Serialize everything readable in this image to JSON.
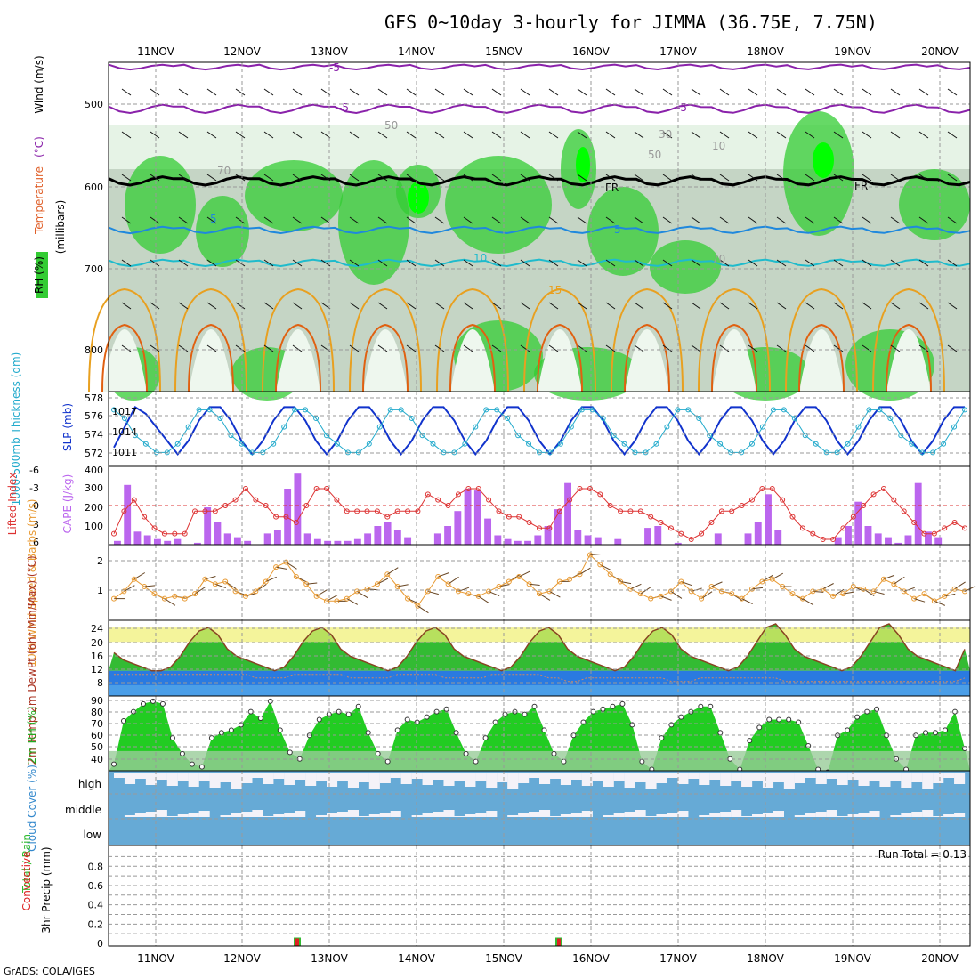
{
  "title": "GFS 0~10day 3-hourly for JIMMA (36.75E, 7.75N)",
  "footer": "GrADS: COLA/IGES",
  "dates": [
    "11NOV",
    "12NOV",
    "13NOV",
    "14NOV",
    "15NOV",
    "16NOV",
    "17NOV",
    "18NOV",
    "19NOV",
    "20NOV"
  ],
  "colors": {
    "rh_green": "#33cc33",
    "thick_line": "#22aacc",
    "slp_line": "#1133cc",
    "cape_bar": "#bb66ee",
    "li_line": "#dd3333",
    "wind_line": "#e89a33",
    "cloud_bg": "#66aad6",
    "precip_rain": "#33bb33",
    "precip_conv": "#dd2222"
  },
  "chart_data": [
    {
      "type": "area",
      "panel": "upper-air",
      "ylabel_parts": [
        "RH (%)",
        "Temperature",
        "(°C)",
        "Wind (m/s)",
        "(millibars)"
      ],
      "y_ticks": [
        "500",
        "600",
        "700",
        "800"
      ],
      "contour_labels": [
        "-5",
        "-5",
        "-5",
        "5",
        "5",
        "10",
        "15",
        "FR",
        "FR",
        "50",
        "30",
        "10",
        "50",
        "70",
        "70"
      ]
    },
    {
      "type": "line",
      "panel": "thickness-slp",
      "ylabel_left": "1000-500mb Thickness (dm)",
      "ylabel_right": "SLP (mb)",
      "left_ticks": [
        "578",
        "576",
        "574",
        "572"
      ],
      "right_ticks": [
        "1017",
        "1014",
        "1011"
      ],
      "series": [
        {
          "name": "SLP",
          "values": [
            1011,
            1014,
            1017,
            1016,
            1014,
            1012,
            1010,
            1012,
            1015,
            1017,
            1017,
            1015,
            1012,
            1010,
            1012,
            1015,
            1017,
            1017,
            1015,
            1012,
            1010,
            1012,
            1015,
            1017,
            1017,
            1015,
            1012,
            1010,
            1012,
            1015,
            1017,
            1017,
            1015,
            1012,
            1010,
            1012,
            1015,
            1017,
            1017,
            1015,
            1012,
            1010,
            1012,
            1015,
            1017,
            1017,
            1015,
            1012,
            1010,
            1012,
            1015,
            1017,
            1017,
            1015,
            1012,
            1010,
            1012,
            1015,
            1017,
            1017,
            1015,
            1012,
            1010,
            1012,
            1015,
            1017,
            1017,
            1015,
            1012,
            1010,
            1012,
            1015,
            1017,
            1017,
            1015,
            1012,
            1010,
            1012,
            1015,
            1017,
            1017
          ]
        },
        {
          "name": "Thickness",
          "values": [
            577,
            576,
            574,
            573,
            572,
            572,
            573,
            575,
            577,
            577,
            576,
            574,
            573,
            572,
            572,
            573,
            575,
            577,
            577,
            576,
            574,
            573,
            572,
            572,
            573,
            575,
            577,
            577,
            576,
            574,
            573,
            572,
            572,
            573,
            575,
            577,
            577,
            576,
            574,
            573,
            572,
            572,
            573,
            575,
            577,
            577,
            576,
            574,
            573,
            572,
            572,
            573,
            575,
            577,
            577,
            576,
            574,
            573,
            572,
            572,
            573,
            575,
            577,
            577,
            576,
            574,
            573,
            572,
            572,
            573,
            575,
            577,
            577,
            576,
            574,
            573,
            572,
            572,
            573,
            575,
            577
          ]
        }
      ]
    },
    {
      "type": "bar",
      "panel": "lifted-index-cape",
      "ylabel_left": "Lifted Index",
      "ylabel_right": "CAPE (J/kg)",
      "li_ticks": [
        "-6",
        "-3",
        "0",
        "3",
        "6"
      ],
      "cape_ticks": [
        "400",
        "300",
        "200",
        "100"
      ],
      "cape": [
        20,
        320,
        70,
        50,
        30,
        20,
        30,
        0,
        10,
        200,
        120,
        60,
        40,
        20,
        0,
        60,
        80,
        300,
        380,
        60,
        30,
        20,
        20,
        20,
        30,
        60,
        100,
        120,
        80,
        40,
        0,
        0,
        60,
        100,
        180,
        300,
        290,
        140,
        50,
        30,
        20,
        20,
        50,
        100,
        190,
        330,
        80,
        50,
        40,
        0,
        30,
        0,
        0,
        90,
        100,
        0,
        10,
        0,
        0,
        0,
        60,
        0,
        0,
        60,
        120,
        270,
        80,
        0,
        0,
        0,
        0,
        0,
        40,
        100,
        230,
        100,
        60,
        40,
        10,
        50,
        330,
        70,
        40,
        0,
        0
      ],
      "li": [
        5,
        1,
        -1,
        2,
        4,
        5,
        5,
        5,
        1,
        1,
        1,
        0,
        -1,
        -3,
        -1,
        0,
        2,
        2,
        3,
        0,
        -3,
        -3,
        -1,
        1,
        1,
        1,
        1,
        2,
        1,
        1,
        1,
        -2,
        -1,
        0,
        -2,
        -3,
        -3,
        -1,
        1,
        2,
        2,
        3,
        4,
        4,
        1,
        -1,
        -3,
        -3,
        -2,
        0,
        1,
        1,
        1,
        2,
        3,
        4,
        5,
        6,
        5,
        3,
        1,
        1,
        0,
        -1,
        -3,
        -3,
        -1,
        2,
        4,
        5,
        6,
        6,
        4,
        2,
        0,
        -2,
        -3,
        -1,
        1,
        3,
        5,
        5,
        4,
        3,
        4
      ]
    },
    {
      "type": "line",
      "panel": "wind10m",
      "ylabel": "10m Wind Speed & Barbs (m/s)",
      "y_ticks": [
        "2",
        "1"
      ],
      "series": [
        {
          "name": "Speed",
          "values": [
            0.6,
            0.9,
            1.4,
            1.1,
            0.8,
            0.6,
            0.7,
            0.6,
            0.8,
            1.4,
            1.2,
            1.3,
            0.9,
            0.7,
            0.9,
            1.3,
            1.9,
            2.1,
            1.5,
            1.2,
            0.7,
            0.5,
            0.5,
            0.6,
            0.9,
            1.0,
            1.2,
            1.6,
            1.1,
            0.6,
            0.3,
            0.9,
            1.5,
            1.2,
            0.9,
            0.8,
            0.7,
            0.9,
            1.1,
            1.3,
            1.5,
            1.2,
            0.8,
            0.9,
            1.3,
            1.4,
            1.6,
            2.4,
            2.0,
            1.6,
            1.3,
            1.0,
            0.8,
            0.6,
            0.7,
            0.9,
            1.3,
            0.9,
            0.6,
            1.1,
            0.9,
            0.8,
            0.6,
            1.0,
            1.3,
            1.4,
            1.1,
            0.8,
            0.6,
            0.9,
            1.0,
            0.7,
            0.8,
            1.1,
            1.0,
            0.9,
            1.4,
            1.2,
            0.9,
            0.6,
            0.8,
            0.5,
            0.7,
            1.0,
            0.9
          ]
        }
      ]
    },
    {
      "type": "area",
      "panel": "temp2m",
      "ylabel": "2m Temp 2m DewPt (6hr Min/Max) (°C)",
      "y_ticks": [
        "24",
        "20",
        "16",
        "12",
        "8"
      ],
      "series": [
        {
          "name": "Temp",
          "values": [
            17,
            15,
            14,
            13,
            12,
            12,
            13,
            16,
            20,
            23,
            24,
            22,
            18,
            16,
            15,
            14,
            13,
            12,
            13,
            16,
            20,
            23,
            24,
            22,
            18,
            16,
            15,
            14,
            13,
            12,
            13,
            16,
            20,
            23,
            24,
            22,
            18,
            16,
            15,
            14,
            13,
            12,
            13,
            16,
            20,
            23,
            24,
            22,
            18,
            16,
            15,
            14,
            13,
            12,
            13,
            16,
            20,
            23,
            24,
            22,
            18,
            16,
            15,
            14,
            13,
            12,
            13,
            16,
            20,
            24,
            25,
            22,
            18,
            16,
            15,
            14,
            13,
            12,
            13,
            16,
            20,
            24,
            25,
            22,
            18,
            16,
            15,
            14,
            13,
            12,
            18
          ]
        },
        {
          "name": "DewPt",
          "values": [
            11,
            11,
            11,
            11,
            11,
            11,
            11,
            11,
            11,
            11,
            11,
            11,
            11,
            11,
            11,
            10,
            10,
            10,
            10,
            11,
            11,
            11,
            11,
            11,
            11,
            10,
            10,
            10,
            10,
            10,
            11,
            11,
            11,
            11,
            11,
            10,
            10,
            10,
            10,
            10,
            11,
            11,
            11,
            11,
            11,
            11,
            10,
            10,
            9,
            9,
            10,
            10,
            10,
            10,
            10,
            10,
            10,
            10,
            10,
            9,
            9,
            9,
            10,
            10,
            10,
            10,
            10,
            10,
            10,
            10,
            10,
            9,
            9,
            9,
            9,
            9,
            9,
            9,
            9,
            9,
            9,
            9,
            9,
            9,
            9,
            9,
            9,
            9,
            9,
            9,
            10
          ]
        }
      ]
    },
    {
      "type": "area",
      "panel": "rh2m",
      "ylabel": "2m RH (%)",
      "y_ticks": [
        "90",
        "80",
        "70",
        "60",
        "50",
        "40"
      ],
      "series": [
        {
          "name": "RH",
          "values": [
            40,
            73,
            80,
            86,
            88,
            86,
            60,
            48,
            40,
            38,
            60,
            64,
            66,
            70,
            80,
            75,
            88,
            66,
            49,
            44,
            62,
            74,
            78,
            80,
            78,
            84,
            64,
            48,
            42,
            66,
            74,
            72,
            76,
            80,
            82,
            64,
            48,
            42,
            60,
            72,
            78,
            80,
            78,
            84,
            66,
            48,
            42,
            62,
            72,
            80,
            82,
            84,
            86,
            70,
            42,
            36,
            60,
            70,
            76,
            80,
            84,
            84,
            64,
            44,
            36,
            58,
            68,
            74,
            74,
            74,
            72,
            54,
            36,
            34,
            62,
            66,
            76,
            80,
            82,
            62,
            44,
            36,
            62,
            64,
            64,
            66,
            80,
            52
          ]
        }
      ]
    },
    {
      "type": "bar",
      "panel": "cloud-cover",
      "ylabel": "Cloud Cover (%)",
      "y_ticks": [
        "high",
        "middle",
        "low"
      ]
    },
    {
      "type": "bar",
      "panel": "precip",
      "ylabel_parts": [
        "Total / Rain",
        "Convective",
        "3hr Precip (mm)"
      ],
      "y_ticks": [
        "0.8",
        "0.6",
        "0.4",
        "0.2",
        "0"
      ],
      "run_total": "Run Total = 0.13",
      "bars": [
        {
          "date": "12NOV",
          "value": 0.06
        },
        {
          "date": "15NOV",
          "value": 0.06
        }
      ]
    }
  ]
}
